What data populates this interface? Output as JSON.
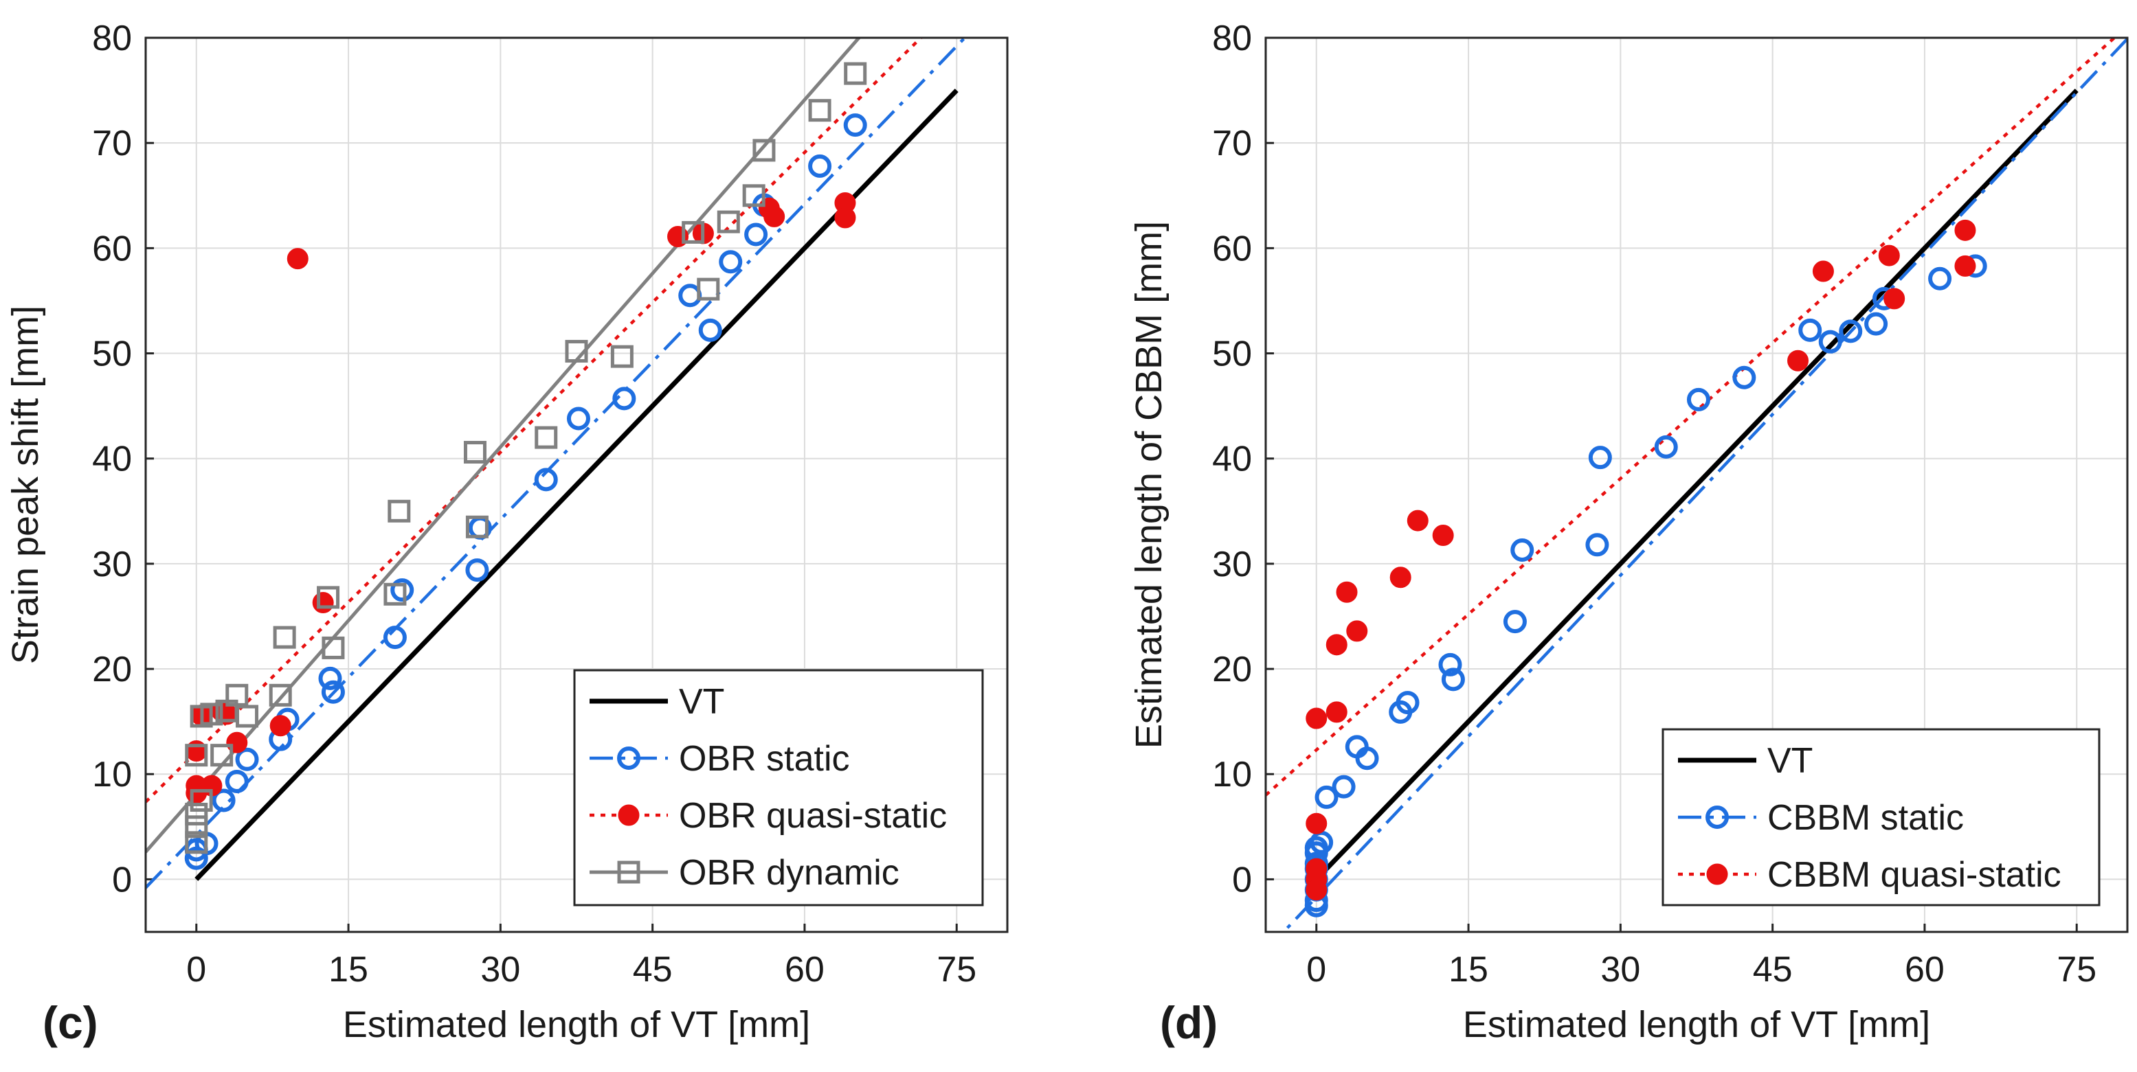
{
  "figure": {
    "type": "scatter"
  },
  "chart_data": [
    {
      "type": "scatter",
      "panel_tag": "(c)",
      "title": "",
      "xlabel": "Estimated length of VT [mm]",
      "ylabel": "Strain peak shift [mm]",
      "xlim": [
        -5,
        80
      ],
      "ylim": [
        -5,
        80
      ],
      "xticks": [
        0,
        15,
        30,
        45,
        60,
        75
      ],
      "yticks": [
        0,
        10,
        20,
        30,
        40,
        50,
        60,
        70,
        80
      ],
      "grid": true,
      "legend_position": "bottom-right",
      "legend": [
        "VT",
        "OBR static",
        "OBR quasi-static",
        "OBR dynamic"
      ],
      "series": [
        {
          "name": "VT",
          "role": "reference",
          "color": "#000000",
          "style": "solid",
          "x": [
            0,
            75
          ],
          "y": [
            0,
            75
          ]
        },
        {
          "name": "OBR static",
          "marker": "circle-open",
          "color": "#1f6fe0",
          "x": [
            0,
            0,
            1,
            2.7,
            4,
            5,
            8.3,
            9,
            13.2,
            13.5,
            19.6,
            20.3,
            27.7,
            28,
            34.5,
            37.7,
            42.2,
            48.7,
            50.7,
            52.7,
            55.2,
            56,
            61.5,
            65
          ],
          "y": [
            2,
            2.8,
            3.4,
            7.5,
            9.3,
            11.4,
            13.3,
            15.2,
            19.1,
            17.8,
            23,
            27.5,
            29.4,
            33.4,
            38,
            43.8,
            45.7,
            55.5,
            52.2,
            58.7,
            61.3,
            64.1,
            67.8,
            71.7
          ],
          "fit": {
            "style": "dash-dot",
            "slope": 1,
            "intercept": 4.2
          }
        },
        {
          "name": "OBR quasi-static",
          "marker": "circle-filled",
          "color": "#e81010",
          "x": [
            0,
            0,
            0,
            0.5,
            1.5,
            2.5,
            3,
            4,
            8.3,
            10,
            12.5,
            47.5,
            50,
            56.5,
            57,
            64,
            64
          ],
          "y": [
            12.2,
            8.9,
            8.2,
            15.6,
            8.9,
            16,
            15.7,
            13,
            14.6,
            59,
            26.3,
            61.1,
            61.4,
            63.8,
            63,
            64.3,
            62.9
          ],
          "fit": {
            "style": "dotted",
            "slope": 0.95,
            "intercept": 12.1
          }
        },
        {
          "name": "OBR dynamic",
          "marker": "square-open",
          "color": "#808080",
          "x": [
            0,
            0,
            0,
            0,
            0.5,
            0.5,
            1.5,
            2.5,
            3,
            4,
            5,
            8.3,
            8.7,
            13,
            13.5,
            19.6,
            20,
            27.5,
            27.7,
            34.5,
            37.5,
            42,
            49,
            50.5,
            52.5,
            55,
            56,
            61.5,
            65
          ],
          "y": [
            3.5,
            5,
            6.2,
            11.8,
            7.5,
            15.5,
            15.7,
            11.8,
            16,
            17.5,
            15.5,
            17.5,
            23,
            26.8,
            22,
            27.1,
            35,
            40.6,
            33.5,
            42,
            50.2,
            49.7,
            61.5,
            56.1,
            62.5,
            65,
            69.3,
            73.1,
            76.6
          ],
          "fit": {
            "style": "solid",
            "slope": 1.1,
            "intercept": 8.1
          }
        }
      ]
    },
    {
      "type": "scatter",
      "panel_tag": "(d)",
      "title": "",
      "xlabel": "Estimated length of VT [mm]",
      "ylabel": "Estimated length of CBBM [mm]",
      "xlim": [
        -5,
        80
      ],
      "ylim": [
        -5,
        80
      ],
      "xticks": [
        0,
        15,
        30,
        45,
        60,
        75
      ],
      "yticks": [
        0,
        10,
        20,
        30,
        40,
        50,
        60,
        70,
        80
      ],
      "grid": true,
      "legend_position": "bottom-right",
      "legend": [
        "VT",
        "CBBM static",
        "CBBM quasi-static"
      ],
      "series": [
        {
          "name": "VT",
          "role": "reference",
          "color": "#000000",
          "style": "solid",
          "x": [
            0,
            75
          ],
          "y": [
            0,
            75
          ]
        },
        {
          "name": "CBBM static",
          "marker": "circle-open",
          "color": "#1f6fe0",
          "x": [
            0,
            0,
            0,
            0,
            0,
            0,
            0,
            0,
            0.5,
            1,
            2.7,
            4,
            5,
            8.3,
            9,
            13.2,
            13.5,
            19.6,
            20.3,
            27.7,
            28,
            34.5,
            37.7,
            42.2,
            48.7,
            50.7,
            52.7,
            55.2,
            56,
            61.5,
            65
          ],
          "y": [
            -2.5,
            -2,
            -1,
            0,
            1,
            1.5,
            2.5,
            3,
            3.5,
            7.8,
            8.8,
            12.6,
            11.5,
            15.9,
            16.8,
            20.4,
            19,
            24.5,
            31.3,
            31.8,
            40.1,
            41.1,
            45.6,
            47.7,
            52.2,
            51.1,
            52.1,
            52.8,
            55.2,
            57.1,
            58.3
          ],
          "fit": {
            "style": "dash-dot",
            "slope": 1.02,
            "intercept": -1.7
          }
        },
        {
          "name": "CBBM quasi-static",
          "marker": "circle-filled",
          "color": "#e81010",
          "x": [
            0,
            0,
            0,
            0,
            0,
            2,
            2,
            3,
            4,
            8.3,
            10,
            12.5,
            47.5,
            50,
            56.5,
            57,
            64,
            64
          ],
          "y": [
            15.3,
            5.3,
            1,
            0,
            -1,
            15.9,
            22.3,
            27.3,
            23.6,
            28.7,
            34.1,
            32.7,
            49.3,
            57.8,
            59.3,
            55.2,
            61.7,
            58.3
          ],
          "fit": {
            "style": "dotted",
            "slope": 0.86,
            "intercept": 12.3
          }
        }
      ]
    }
  ]
}
